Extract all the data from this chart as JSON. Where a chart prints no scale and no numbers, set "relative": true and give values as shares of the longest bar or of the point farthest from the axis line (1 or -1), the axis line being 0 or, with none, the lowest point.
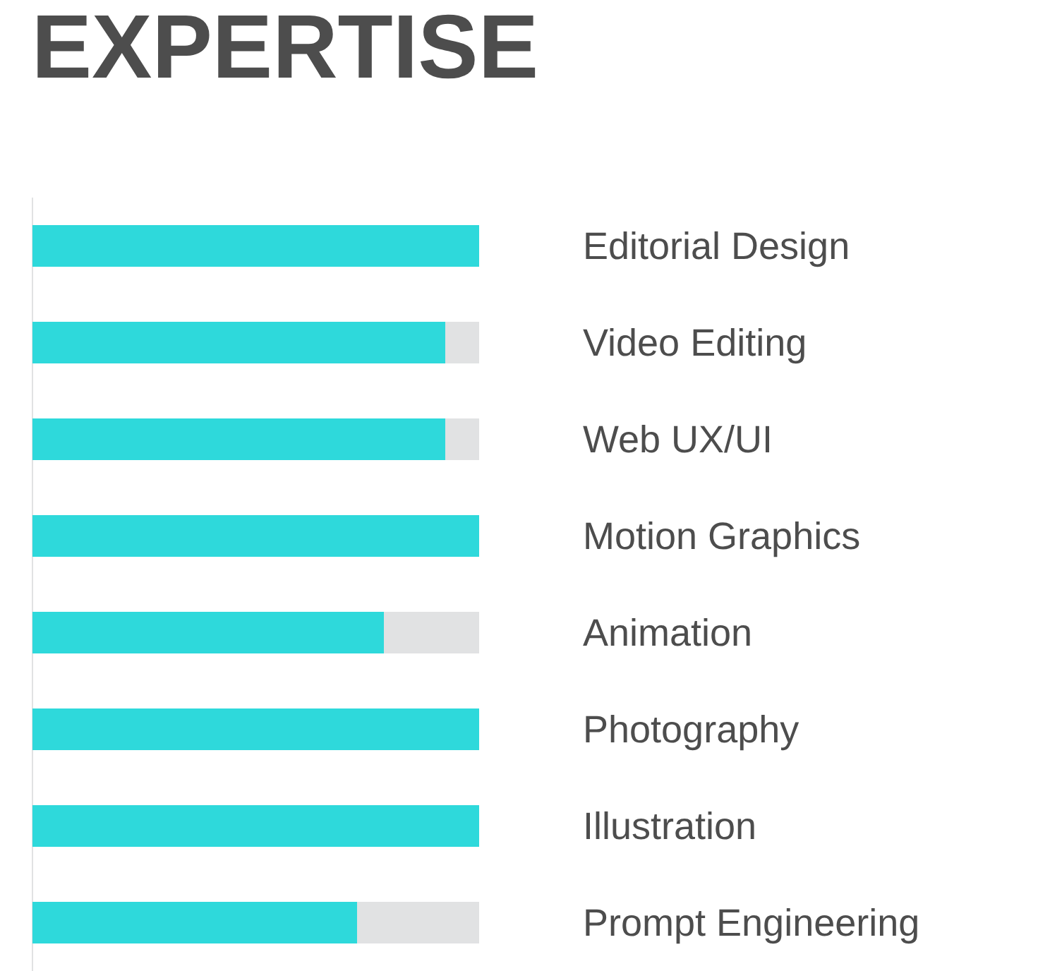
{
  "chart_data": {
    "type": "bar",
    "title": "EXPERTISE",
    "orientation": "horizontal",
    "stacked": true,
    "relative": true,
    "categories": [
      "Editorial Design",
      "Video Editing",
      "Web UX/UI",
      "Motion Graphics",
      "Animation",
      "Photography",
      "Illustration",
      "Prompt Engineering"
    ],
    "series": [
      {
        "color": "#2ed9db",
        "values": [
          1,
          0.925,
          0.925,
          1,
          0.787,
          1,
          1,
          0.727
        ]
      },
      {
        "color": "#e1e2e3",
        "values": [
          null,
          0.075,
          0.075,
          null,
          0.213,
          null,
          null,
          0.273
        ]
      }
    ],
    "grid": false,
    "legend": false
  }
}
